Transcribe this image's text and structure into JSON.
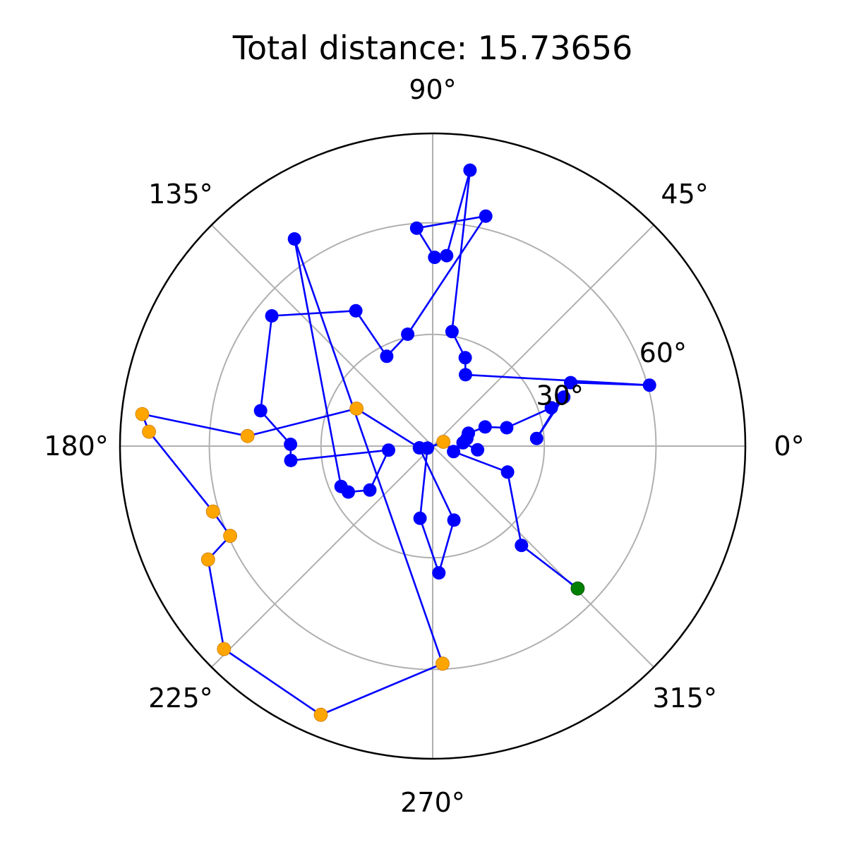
{
  "chart_data": {
    "type": "scatter",
    "projection": "polar",
    "title": "Total distance: 15.73656",
    "theta_ticks": [
      "0°",
      "45°",
      "90°",
      "135°",
      "180°",
      "225°",
      "270°",
      "315°"
    ],
    "theta_tick_values_deg": [
      0,
      45,
      90,
      135,
      180,
      225,
      270,
      315
    ],
    "r_ticks": [
      "30°",
      "60°"
    ],
    "r_tick_values": [
      30,
      60
    ],
    "r_gridlines": [
      30,
      60
    ],
    "rlim": [
      0,
      84
    ],
    "r_label_angle_deg": 22.5,
    "grid": true,
    "colors": {
      "path": "#0000ff",
      "default_point": "#0000ff",
      "highlight_point": "#ffa500",
      "start_point": "#008000",
      "grid": "#b0b0b0",
      "frame": "#000000"
    },
    "points": [
      {
        "theta": 315.5,
        "r": 54.6,
        "kind": "start"
      },
      {
        "theta": 311.8,
        "r": 35.8,
        "kind": "normal"
      },
      {
        "theta": 340.9,
        "r": 21.3,
        "kind": "normal"
      },
      {
        "theta": 345.3,
        "r": 5.8,
        "kind": "normal"
      },
      {
        "theta": 21.4,
        "r": 3.1,
        "kind": "highlight"
      },
      {
        "theta": 201.6,
        "r": 1.5,
        "kind": "normal"
      },
      {
        "theta": 260.1,
        "r": 19.7,
        "kind": "normal"
      },
      {
        "theta": 272.8,
        "r": 34.1,
        "kind": "normal"
      },
      {
        "theta": 286.0,
        "r": 20.7,
        "kind": "normal"
      },
      {
        "theta": 187.6,
        "r": 3.6,
        "kind": "normal"
      },
      {
        "theta": 153.8,
        "r": 22.8,
        "kind": "highlight"
      },
      {
        "theta": 176.9,
        "r": 49.8,
        "kind": "highlight"
      },
      {
        "theta": 173.7,
        "r": 78.5,
        "kind": "highlight"
      },
      {
        "theta": 177.1,
        "r": 76.3,
        "kind": "highlight"
      },
      {
        "theta": 196.6,
        "r": 61.6,
        "kind": "highlight"
      },
      {
        "theta": 203.9,
        "r": 59.5,
        "kind": "highlight"
      },
      {
        "theta": 206.8,
        "r": 67.6,
        "kind": "highlight"
      },
      {
        "theta": 224.2,
        "r": 78.2,
        "kind": "highlight"
      },
      {
        "theta": 247.4,
        "r": 78.2,
        "kind": "highlight"
      },
      {
        "theta": 272.6,
        "r": 58.5,
        "kind": "highlight"
      },
      {
        "theta": 123.7,
        "r": 66.9,
        "kind": "normal"
      },
      {
        "theta": 203.8,
        "r": 26.9,
        "kind": "normal"
      },
      {
        "theta": 208.6,
        "r": 25.8,
        "kind": "normal"
      },
      {
        "theta": 215.0,
        "r": 20.6,
        "kind": "normal"
      },
      {
        "theta": 185.2,
        "r": 11.9,
        "kind": "normal"
      },
      {
        "theta": 185.8,
        "r": 38.3,
        "kind": "normal"
      },
      {
        "theta": 179.3,
        "r": 38.2,
        "kind": "normal"
      },
      {
        "theta": 168.4,
        "r": 47.2,
        "kind": "normal"
      },
      {
        "theta": 141.0,
        "r": 55.6,
        "kind": "normal"
      },
      {
        "theta": 119.6,
        "r": 41.8,
        "kind": "normal"
      },
      {
        "theta": 117.1,
        "r": 27.1,
        "kind": "normal"
      },
      {
        "theta": 102.6,
        "r": 30.8,
        "kind": "normal"
      },
      {
        "theta": 77.0,
        "r": 63.4,
        "kind": "normal"
      },
      {
        "theta": 94.2,
        "r": 58.7,
        "kind": "normal"
      },
      {
        "theta": 89.4,
        "r": 50.7,
        "kind": "normal"
      },
      {
        "theta": 85.8,
        "r": 51.3,
        "kind": "normal"
      },
      {
        "theta": 82.3,
        "r": 74.8,
        "kind": "normal"
      },
      {
        "theta": 80.4,
        "r": 31.2,
        "kind": "normal"
      },
      {
        "theta": 69.8,
        "r": 25.3,
        "kind": "normal"
      },
      {
        "theta": 65.3,
        "r": 21.1,
        "kind": "normal"
      },
      {
        "theta": 15.7,
        "r": 60.5,
        "kind": "normal"
      },
      {
        "theta": 24.7,
        "r": 40.8,
        "kind": "normal"
      },
      {
        "theta": 4.2,
        "r": 28.0,
        "kind": "normal"
      },
      {
        "theta": 20.5,
        "r": 37.6,
        "kind": "normal"
      },
      {
        "theta": 17.9,
        "r": 33.5,
        "kind": "normal"
      },
      {
        "theta": 13.9,
        "r": 20.5,
        "kind": "normal"
      },
      {
        "theta": 20.0,
        "r": 15.0,
        "kind": "normal"
      },
      {
        "theta": 19.8,
        "r": 10.2,
        "kind": "normal"
      },
      {
        "theta": 12.3,
        "r": 9.4,
        "kind": "normal"
      },
      {
        "theta": 6.3,
        "r": 8.2,
        "kind": "normal"
      },
      {
        "theta": 355.2,
        "r": 12.1,
        "kind": "normal"
      }
    ]
  }
}
